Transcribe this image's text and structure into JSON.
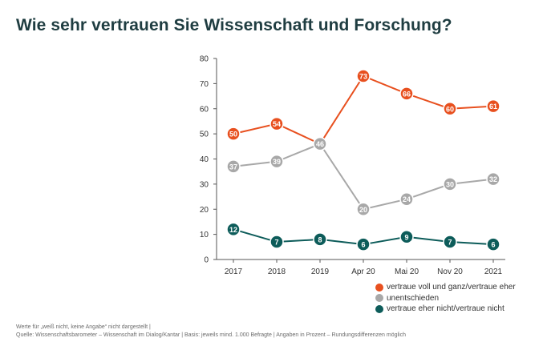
{
  "chart_data": {
    "type": "line",
    "title": "Wie sehr vertrauen Sie Wissenschaft und Forschung?",
    "categories": [
      "2017",
      "2018",
      "2019",
      "Apr 20",
      "Mai 20",
      "Nov 20",
      "2021"
    ],
    "y_ticks": [
      "0",
      "10",
      "20",
      "30",
      "40",
      "50",
      "60",
      "70",
      "80"
    ],
    "ylim": [
      0,
      80
    ],
    "grid": false,
    "legend_position": "bottom-right",
    "series": [
      {
        "name": "vertraue voll und ganz/vertraue eher",
        "color": "#e8501f",
        "values": [
          50,
          54,
          46,
          73,
          66,
          60,
          61
        ]
      },
      {
        "name": "unentschieden",
        "color": "#a8a8a8",
        "values": [
          37,
          39,
          46,
          20,
          24,
          30,
          32
        ]
      },
      {
        "name": "vertraue eher nicht/vertraue nicht",
        "color": "#0d5c5a",
        "values": [
          12,
          7,
          8,
          6,
          9,
          7,
          6
        ]
      }
    ]
  },
  "notes": {
    "line1": "Werte für „weiß nicht, keine Angabe“ nicht dargestellt |",
    "line2": "Quelle: Wissenschaftsbarometer – Wissenschaft im Dialog/Kantar | Basis: jeweils mind. 1.000 Befragte | Angaben in Prozent – Rundungsdifferenzen möglich"
  }
}
